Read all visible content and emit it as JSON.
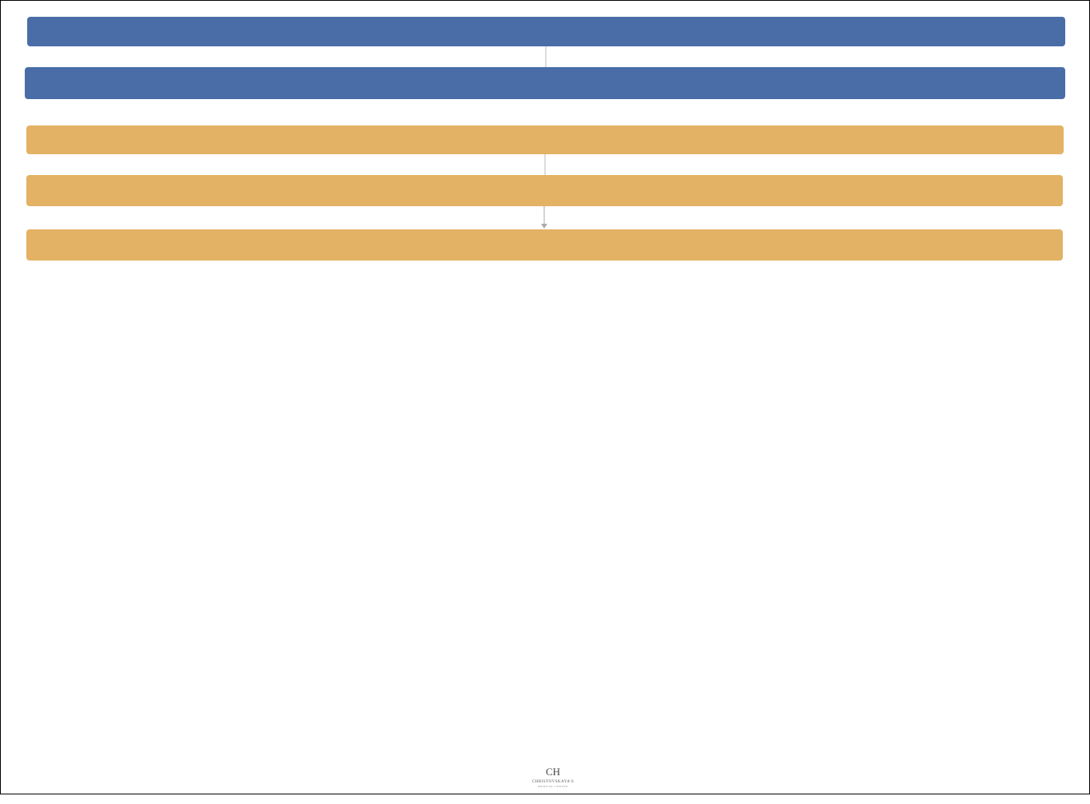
{
  "logo": {
    "monogram": "CH",
    "name": "CHRISTOVSKAYA'S",
    "tagline": "MEDICAL CENTER"
  }
}
